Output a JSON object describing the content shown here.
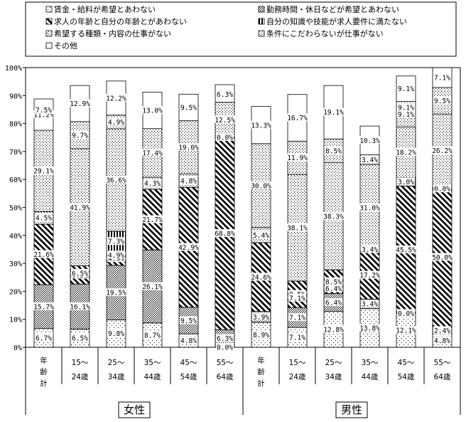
{
  "chart_data": {
    "type": "bar",
    "stacked": true,
    "ylim": [
      0,
      100
    ],
    "y_ticks": [
      "0%",
      "10%",
      "20%",
      "30%",
      "40%",
      "50%",
      "60%",
      "70%",
      "80%",
      "90%",
      "100%"
    ],
    "categories": [
      [
        "年",
        "齢",
        "計"
      ],
      [
        "15～",
        "24歳"
      ],
      [
        "25～",
        "34歳"
      ],
      [
        "35～",
        "44歳"
      ],
      [
        "45～",
        "54歳"
      ],
      [
        "55～",
        "64歳"
      ],
      [
        "年",
        "齢",
        "計"
      ],
      [
        "15～",
        "24歳"
      ],
      [
        "25～",
        "34歳"
      ],
      [
        "35～",
        "44歳"
      ],
      [
        "45～",
        "54歳"
      ],
      [
        "55～",
        "64歳"
      ]
    ],
    "groups": [
      {
        "label": "女性",
        "start": 0,
        "end": 5
      },
      {
        "label": "男性",
        "start": 6,
        "end": 11
      }
    ],
    "series": [
      {
        "name": "賃金・給料が希望とあわない",
        "pattern": "dots-sparse",
        "values": [
          6.7,
          6.5,
          9.8,
          8.7,
          4.8,
          0.0,
          8.9,
          7.1,
          12.8,
          13.8,
          12.1,
          4.8
        ],
        "labels": [
          "6.7%",
          "6.5%",
          "9.8%",
          "8.7%",
          "4.8%",
          "0.0%",
          "8.9%",
          "7.1%",
          "12.8%",
          "13.8%",
          "12.1%",
          "4.8%"
        ]
      },
      {
        "name": "勤務時間・休日などが希望とあわない",
        "pattern": "dots-dense",
        "values": [
          15.7,
          16.1,
          19.5,
          26.1,
          9.5,
          6.3,
          3.9,
          7.1,
          6.4,
          3.4,
          0.0,
          2.4
        ],
        "labels": [
          "15.7%",
          "16.1%",
          "19.5%",
          "26.1%",
          "9.5%",
          "6.3%",
          "3.9%",
          "7.1%",
          "6.4%",
          "3.4%",
          "0.0%",
          "2.4%"
        ]
      },
      {
        "name": "求人の年齢と自分の年齢とがあわない",
        "pattern": "diagonal",
        "values": [
          21.6,
          6.5,
          4.9,
          21.7,
          42.9,
          68.8,
          24.6,
          9.5,
          8.5,
          17.2,
          45.5,
          50.0
        ],
        "labels": [
          "21.6%",
          "6.5%",
          "4.9%",
          "21.7%",
          "42.9%",
          "68.8%",
          "24.6%",
          "9.5%",
          "8.5%",
          "17.2%",
          "45.5%",
          "50.0%"
        ]
      },
      {
        "name": "自分の知識や技能が求人要件に満たない",
        "pattern": "vertical",
        "values": [
          0.0,
          0.0,
          7.3,
          0.0,
          0.0,
          0.0,
          0.0,
          0.0,
          0.0,
          0.0,
          3.0,
          0.0
        ],
        "labels": [
          "",
          "",
          "7.3%",
          "",
          "",
          "",
          "",
          "",
          "",
          "",
          "3.0%",
          ""
        ]
      },
      {
        "name": "希望する種類・内容の仕事がない",
        "pattern": "dots-medium",
        "values": [
          4.5,
          41.9,
          36.6,
          4.3,
          4.8,
          0.0,
          5.4,
          38.1,
          38.3,
          31.0,
          18.2,
          26.2
        ],
        "labels": [
          "4.5%",
          "41.9%",
          "36.6%",
          "4.3%",
          "4.8%",
          "0.0%",
          "5.4%",
          "38.1%",
          "38.3%",
          "31.0%",
          "18.2%",
          "26.2%"
        ]
      },
      {
        "name": "条件にこだわらないが仕事がない",
        "pattern": "dots-fine",
        "values": [
          29.1,
          9.7,
          4.9,
          17.4,
          19.0,
          12.5,
          30.0,
          11.9,
          8.5,
          3.4,
          9.1,
          9.5
        ],
        "labels": [
          "29.1%",
          "9.7%",
          "4.9%",
          "17.4%",
          "19.0%",
          "12.5%",
          "30.0%",
          "11.9%",
          "8.5%",
          "3.4%",
          "9.1%",
          "9.5%"
        ]
      },
      {
        "name": "その他",
        "pattern": "white",
        "values": [
          11.2,
          12.9,
          12.2,
          13.0,
          9.5,
          6.3,
          13.3,
          16.7,
          19.1,
          10.3,
          9.1,
          7.1
        ],
        "labels": [
          "11.2%",
          "12.9%",
          "12.2%",
          "13.0%",
          "9.5%",
          "6.3%",
          "13.3%",
          "16.7%",
          "19.1%",
          "10.3%",
          "9.1%",
          "7.1%"
        ]
      }
    ],
    "extra_labels": [
      {
        "bar": 0,
        "text": "7.5%",
        "at": 84.8
      },
      {
        "bar": 5,
        "text": "6.3%",
        "at": 90.5
      },
      {
        "bar": 1,
        "text": "6.5%",
        "at": 26.5
      },
      {
        "bar": 2,
        "text": "4.9%",
        "at": 33.0
      },
      {
        "bar": 4,
        "text": "9.5%",
        "at": 85.8
      },
      {
        "bar": 7,
        "text": "7.1%",
        "at": 17.6
      },
      {
        "bar": 8,
        "text": "6.4%",
        "at": 21.0
      },
      {
        "bar": 9,
        "text": "3.4%",
        "at": 35.0
      },
      {
        "bar": 10,
        "text": "9.1%",
        "at": 85.8
      },
      {
        "bar": 11,
        "text": "0.0%",
        "at": 56.7
      }
    ],
    "legend_position": "top",
    "grid": false
  }
}
